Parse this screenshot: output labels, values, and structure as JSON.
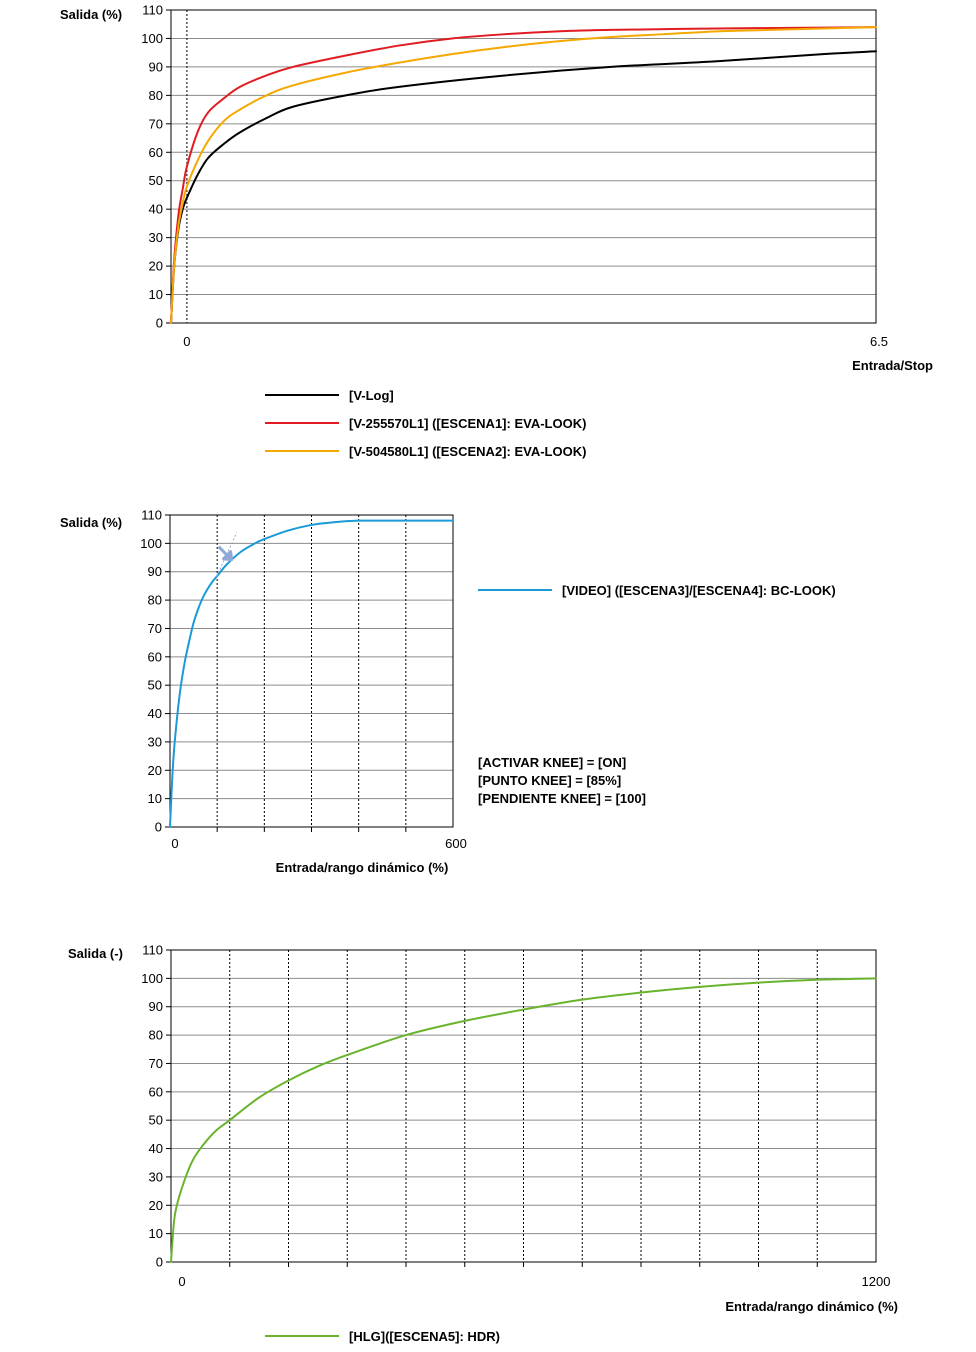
{
  "chart_data": [
    {
      "type": "line",
      "ylabel": "Salida (%)",
      "xlabel": "Entrada/Stop",
      "x_ticks": [
        "0",
        "6.5"
      ],
      "y_ticks": [
        "0",
        "10",
        "20",
        "30",
        "40",
        "50",
        "60",
        "70",
        "80",
        "90",
        "100",
        "110"
      ],
      "ylim": [
        0,
        110
      ],
      "xlim": [
        -0.15,
        6.5
      ],
      "grid": "horizontal lines at every 10; dotted vertical line at x = 0",
      "legend": "below",
      "series": [
        {
          "name": "[V-Log]",
          "color": "#000000",
          "x": [
            -0.15,
            -0.12,
            -0.08,
            -0.04,
            0,
            0.1,
            0.2,
            0.35,
            0.5,
            0.75,
            1.0,
            1.5,
            2.0,
            3.0,
            4.0,
            5.0,
            6.0,
            6.5
          ],
          "y": [
            0,
            20,
            33,
            40,
            44,
            52,
            58,
            63,
            67,
            72,
            76,
            80,
            83,
            87,
            90,
            92,
            94.5,
            95.5
          ]
        },
        {
          "name": "[V-255570L1] ([ESCENA1]: EVA-LOOK)",
          "color": "#e11b22",
          "x": [
            -0.15,
            -0.12,
            -0.08,
            -0.04,
            0,
            0.1,
            0.2,
            0.35,
            0.5,
            0.75,
            1.0,
            1.5,
            2.0,
            2.5,
            3.0,
            3.5,
            4.0,
            5.0,
            6.0,
            6.5
          ],
          "y": [
            0,
            22,
            38,
            47,
            55,
            67,
            74,
            79,
            83,
            87,
            90,
            94,
            97.5,
            100,
            101.5,
            102.5,
            103,
            103.5,
            103.8,
            104
          ]
        },
        {
          "name": "[V-504580L1] ([ESCENA2]: EVA-LOOK)",
          "color": "#f5a800",
          "x": [
            -0.15,
            -0.12,
            -0.08,
            -0.04,
            0,
            0.1,
            0.2,
            0.35,
            0.5,
            0.75,
            1.0,
            1.5,
            2.0,
            2.5,
            3.0,
            3.5,
            4.0,
            4.5,
            5.0,
            5.5,
            6.0,
            6.5
          ],
          "y": [
            0,
            20,
            34,
            42,
            48,
            57,
            64,
            71,
            75,
            80,
            83.5,
            88,
            91.5,
            94.5,
            97,
            99,
            100.5,
            101.5,
            102.5,
            103,
            103.5,
            104
          ]
        }
      ]
    },
    {
      "type": "line",
      "ylabel": "Salida (%)",
      "xlabel": "Entrada/rango dinámico (%)",
      "x_ticks": [
        "0",
        "600"
      ],
      "y_ticks": [
        "0",
        "10",
        "20",
        "30",
        "40",
        "50",
        "60",
        "70",
        "80",
        "90",
        "100",
        "110"
      ],
      "ylim": [
        0,
        110
      ],
      "xlim": [
        0,
        600
      ],
      "grid": "horizontal lines at every 10; dotted vertical lines at x = 100, 200, 300, 400, 500",
      "legend": "right",
      "annotations": [
        "[ACTIVAR KNEE] = [ON]",
        "[PUNTO KNEE] = [85%]",
        "[PENDIENTE KNEE] = [100]"
      ],
      "knee_marker": {
        "x": 120,
        "y": 96
      },
      "series": [
        {
          "name": "[VIDEO] ([ESCENA3]/[ESCENA4]: BC-LOOK)",
          "color": "#1a9ad6",
          "x": [
            0,
            5,
            10,
            20,
            30,
            40,
            50,
            60,
            70,
            80,
            90,
            100,
            120,
            150,
            180,
            200,
            250,
            300,
            350,
            400,
            450,
            500,
            550,
            600
          ],
          "y": [
            0,
            18,
            30,
            46,
            57,
            65,
            72,
            77,
            81,
            84,
            86.5,
            88.5,
            92.5,
            97,
            100,
            101.5,
            104.5,
            106.5,
            107.5,
            108,
            108,
            108,
            108,
            108
          ]
        }
      ]
    },
    {
      "type": "line",
      "ylabel": "Salida (-)",
      "xlabel": "Entrada/rango dinámico (%)",
      "x_ticks": [
        "0",
        "1200"
      ],
      "y_ticks": [
        "0",
        "10",
        "20",
        "30",
        "40",
        "50",
        "60",
        "70",
        "80",
        "90",
        "100",
        "110"
      ],
      "ylim": [
        0,
        110
      ],
      "xlim": [
        0,
        1200
      ],
      "grid": "horizontal lines at every 10; dotted vertical lines every 100",
      "legend": "below",
      "series": [
        {
          "name": "[HLG]([ESCENA5]: HDR)",
          "color": "#6ab42d",
          "x": [
            0,
            5,
            10,
            20,
            35,
            50,
            75,
            100,
            150,
            200,
            250,
            300,
            400,
            500,
            600,
            700,
            800,
            900,
            1000,
            1100,
            1200
          ],
          "y": [
            0,
            14,
            20,
            27,
            35,
            40,
            46,
            50,
            58,
            64,
            69,
            73,
            80,
            85,
            89,
            92.5,
            95,
            97,
            98.5,
            99.5,
            100
          ]
        }
      ]
    }
  ]
}
